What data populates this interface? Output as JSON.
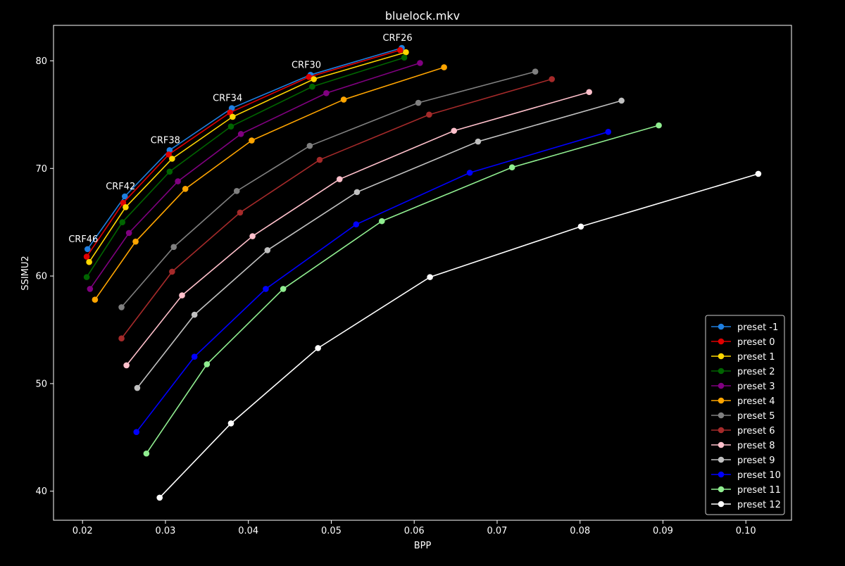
{
  "chart_data": {
    "type": "line",
    "title": "bluelock.mkv",
    "xlabel": "BPP",
    "ylabel": "SSIMU2",
    "xlim": [
      0.0165,
      0.1055
    ],
    "ylim": [
      37.3,
      83.3
    ],
    "xticks": [
      0.02,
      0.03,
      0.04,
      0.05,
      0.06,
      0.07,
      0.08,
      0.09,
      0.1
    ],
    "xtick_labels": [
      "0.02",
      "0.03",
      "0.04",
      "0.05",
      "0.06",
      "0.07",
      "0.08",
      "0.09",
      "0.10"
    ],
    "yticks": [
      40,
      50,
      60,
      70,
      80
    ],
    "ytick_labels": [
      "40",
      "50",
      "60",
      "70",
      "80"
    ],
    "grid": false,
    "legend_position": "bottom-right",
    "crf_labels": [
      "CRF46",
      "CRF42",
      "CRF38",
      "CRF34",
      "CRF30",
      "CRF26"
    ],
    "series": [
      {
        "name": "preset -1",
        "color": "#1e7fe0",
        "x": [
          0.0206,
          0.0251,
          0.0305,
          0.038,
          0.0475,
          0.0585
        ],
        "y": [
          62.5,
          67.4,
          71.7,
          75.6,
          78.7,
          81.2
        ]
      },
      {
        "name": "preset 0",
        "color": "#e00000",
        "x": [
          0.0205,
          0.0249,
          0.0304,
          0.0378,
          0.0473,
          0.0583
        ],
        "y": [
          61.8,
          66.8,
          71.3,
          75.2,
          78.5,
          81.0
        ]
      },
      {
        "name": "preset 1",
        "color": "#ffd700",
        "x": [
          0.0208,
          0.0252,
          0.0308,
          0.0381,
          0.0479,
          0.059
        ],
        "y": [
          61.3,
          66.4,
          70.9,
          74.8,
          78.3,
          80.8
        ]
      },
      {
        "name": "preset 2",
        "color": "#006400",
        "x": [
          0.0205,
          0.0248,
          0.0305,
          0.0379,
          0.0477,
          0.0588
        ],
        "y": [
          59.9,
          65.0,
          69.7,
          73.9,
          77.6,
          80.3
        ]
      },
      {
        "name": "preset 3",
        "color": "#800080",
        "x": [
          0.0209,
          0.0256,
          0.0315,
          0.0391,
          0.0494,
          0.0607
        ],
        "y": [
          58.8,
          64.0,
          68.8,
          73.2,
          77.0,
          79.8
        ]
      },
      {
        "name": "preset 4",
        "color": "#ffa500",
        "x": [
          0.0215,
          0.0264,
          0.0324,
          0.0404,
          0.0515,
          0.0636
        ],
        "y": [
          57.8,
          63.2,
          68.1,
          72.6,
          76.4,
          79.4
        ]
      },
      {
        "name": "preset 5",
        "color": "#808080",
        "x": [
          0.0247,
          0.031,
          0.0386,
          0.0474,
          0.0605,
          0.0746
        ],
        "y": [
          57.1,
          62.7,
          67.9,
          72.1,
          76.1,
          79.0
        ]
      },
      {
        "name": "preset 6",
        "color": "#a52a2a",
        "x": [
          0.0247,
          0.0308,
          0.039,
          0.0486,
          0.0618,
          0.0766
        ],
        "y": [
          54.2,
          60.4,
          65.9,
          70.8,
          75.0,
          78.3
        ]
      },
      {
        "name": "preset 8",
        "color": "#ffc0cb",
        "x": [
          0.0253,
          0.032,
          0.0405,
          0.051,
          0.0648,
          0.0811
        ],
        "y": [
          51.7,
          58.2,
          63.7,
          69.0,
          73.5,
          77.1
        ]
      },
      {
        "name": "preset 9",
        "color": "#c0c0c0",
        "x": [
          0.0266,
          0.0335,
          0.0423,
          0.0531,
          0.0677,
          0.085
        ],
        "y": [
          49.6,
          56.4,
          62.4,
          67.8,
          72.5,
          76.3
        ]
      },
      {
        "name": "preset 10",
        "color": "#0000ff",
        "x": [
          0.0265,
          0.0335,
          0.0421,
          0.053,
          0.0667,
          0.0834
        ],
        "y": [
          45.5,
          52.5,
          58.8,
          64.8,
          69.6,
          73.4
        ]
      },
      {
        "name": "preset 11",
        "color": "#90ee90",
        "x": [
          0.0277,
          0.035,
          0.0442,
          0.0561,
          0.0718,
          0.0895
        ],
        "y": [
          43.5,
          51.8,
          58.8,
          65.1,
          70.1,
          74.0
        ]
      },
      {
        "name": "preset 12",
        "color": "#ffffff",
        "x": [
          0.0293,
          0.0379,
          0.0484,
          0.0619,
          0.0801,
          0.1015
        ],
        "y": [
          39.4,
          46.3,
          53.3,
          59.9,
          64.6,
          69.5
        ]
      }
    ]
  }
}
